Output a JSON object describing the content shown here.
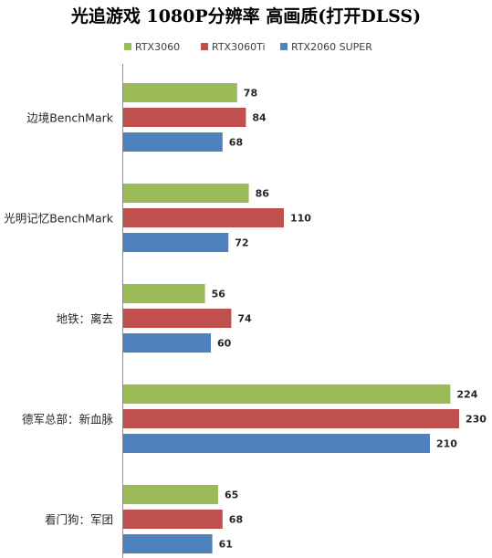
{
  "chart_data": {
    "type": "bar",
    "orientation": "horizontal",
    "title": "光追游戏 1080P分辨率 高画质(打开DLSS)",
    "categories": [
      "边境BenchMark",
      "光明记忆BenchMark",
      "地铁：离去",
      "德军总部：新血脉",
      "看门狗：军团"
    ],
    "series": [
      {
        "name": "RTX3060",
        "color": "#9bbb59",
        "values": [
          78,
          86,
          56,
          224,
          65
        ]
      },
      {
        "name": "RTX3060Ti",
        "color": "#c0504d",
        "values": [
          84,
          110,
          74,
          230,
          68
        ]
      },
      {
        "name": "RTX2060 SUPER",
        "color": "#4f81bd",
        "values": [
          68,
          72,
          60,
          210,
          61
        ]
      }
    ],
    "xlim": [
      0,
      235
    ],
    "grid": false,
    "legend_position": "top",
    "data_labels": true
  }
}
